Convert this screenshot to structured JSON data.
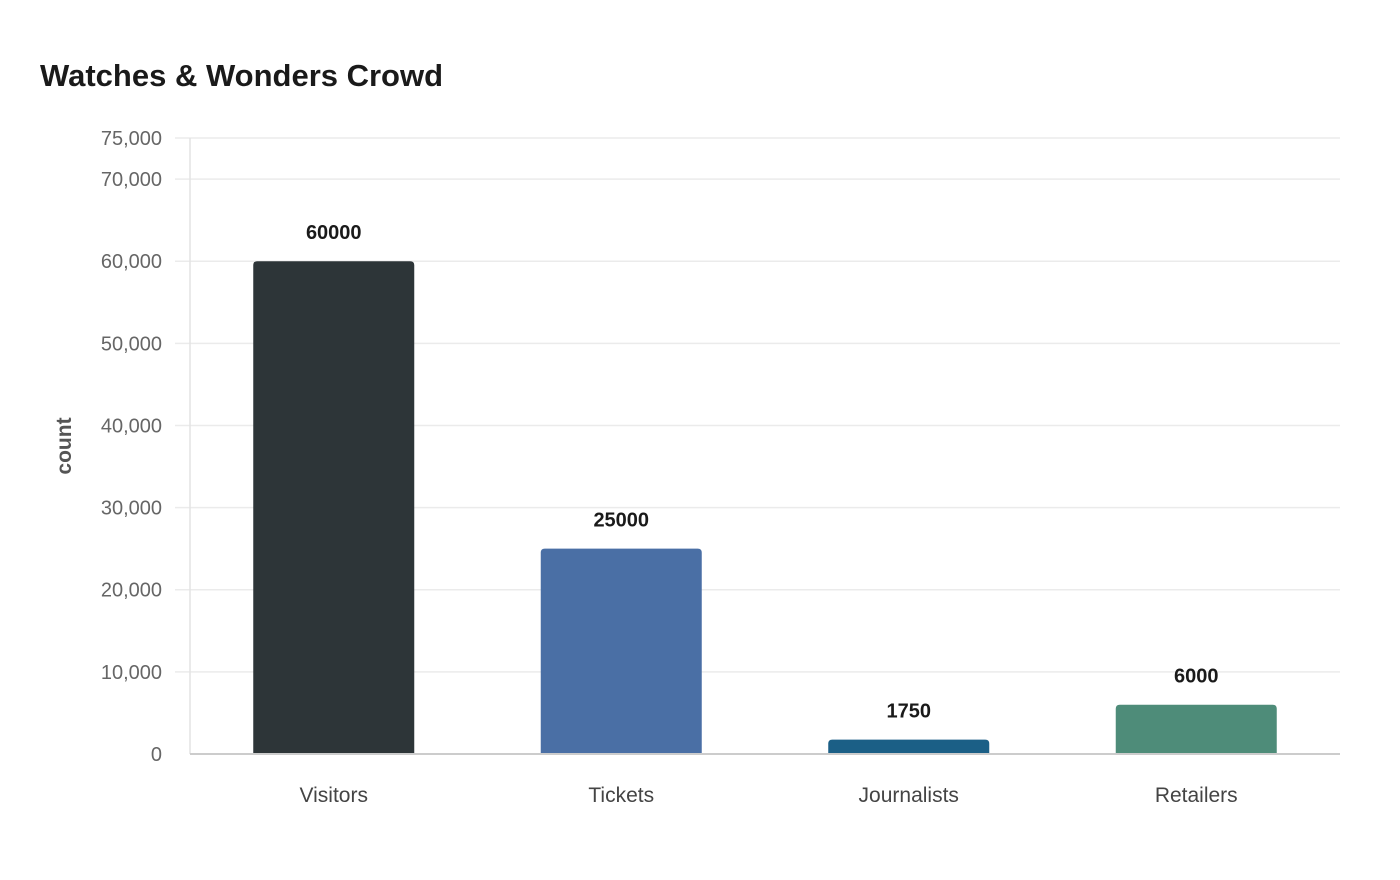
{
  "chart_data": {
    "type": "bar",
    "title": "Watches & Wonders Crowd",
    "xlabel": "",
    "ylabel": "count",
    "categories": [
      "Visitors",
      "Tickets",
      "Journalists",
      "Retailers"
    ],
    "values": [
      60000,
      25000,
      1750,
      6000
    ],
    "value_labels": [
      "60000",
      "25000",
      "1750",
      "6000"
    ],
    "colors": [
      "#2d3538",
      "#4a6fa5",
      "#1b5f86",
      "#4e8c79"
    ],
    "ylim": [
      0,
      75000
    ],
    "y_ticks": [
      0,
      10000,
      20000,
      30000,
      40000,
      50000,
      60000,
      70000,
      75000
    ],
    "y_tick_labels": [
      "0",
      "10,000",
      "20,000",
      "30,000",
      "40,000",
      "50,000",
      "60,000",
      "70,000",
      "75,000"
    ],
    "grid": true,
    "legend": "none"
  }
}
